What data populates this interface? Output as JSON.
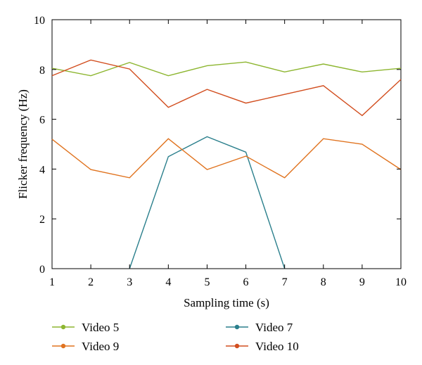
{
  "chart_data": {
    "type": "line",
    "xlabel": "Sampling time (s)",
    "ylabel": "Flicker frequency (Hz)",
    "xlim": [
      1,
      10
    ],
    "ylim": [
      0,
      10
    ],
    "x_ticks": [
      "1",
      "2",
      "3",
      "4",
      "5",
      "6",
      "7",
      "8",
      "9",
      "10"
    ],
    "y_ticks": [
      "0",
      "2",
      "4",
      "6",
      "8",
      "10"
    ],
    "grid": false,
    "legend_position": "bottom",
    "series": [
      {
        "name": "Video 5",
        "color": "#8db630",
        "x": [
          1,
          2,
          3,
          4,
          5,
          6,
          7,
          8,
          9,
          10
        ],
        "y": [
          8.05,
          7.75,
          8.28,
          7.75,
          8.15,
          8.3,
          7.9,
          8.22,
          7.9,
          8.05
        ]
      },
      {
        "name": "Video 7",
        "color": "#2a7f8c",
        "x": [
          3,
          4,
          5,
          6,
          7
        ],
        "y": [
          0,
          4.5,
          5.3,
          4.68,
          0
        ]
      },
      {
        "name": "Video 9",
        "color": "#e0731f",
        "x": [
          1,
          2,
          3,
          4,
          5,
          6,
          7,
          8,
          9,
          10
        ],
        "y": [
          5.2,
          3.98,
          3.65,
          5.22,
          3.98,
          4.52,
          3.65,
          5.22,
          5.0,
          3.98
        ]
      },
      {
        "name": "Video 10",
        "color": "#d24e1f",
        "x": [
          1,
          2,
          3,
          4,
          5,
          6,
          7,
          8,
          9,
          10
        ],
        "y": [
          7.75,
          8.38,
          8.02,
          6.48,
          7.2,
          6.65,
          7.0,
          7.35,
          6.15,
          7.6
        ]
      }
    ]
  }
}
